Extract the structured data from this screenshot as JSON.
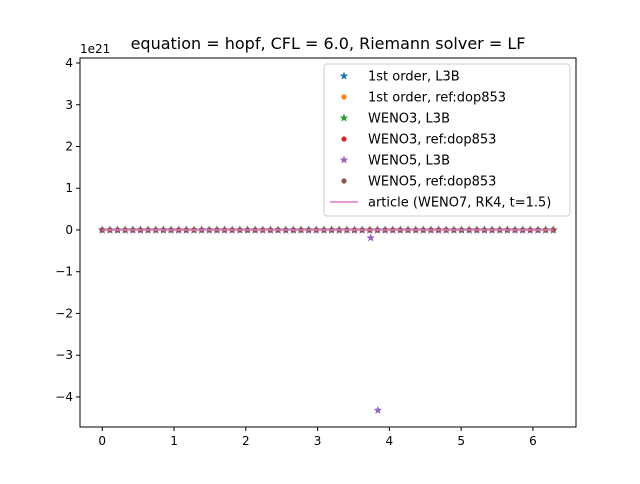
{
  "chart_data": {
    "type": "scatter",
    "title": "equation = hopf, CFL = 6.0, Riemann solver = LF",
    "xlabel": "",
    "ylabel": "",
    "xlim": [
      -0.31,
      6.6
    ],
    "ylim": [
      -4.72,
      4.12
    ],
    "y_offset_label": "1e21",
    "x_ticks": [
      0,
      1,
      2,
      3,
      4,
      5,
      6
    ],
    "y_ticks": [
      -4,
      -3,
      -2,
      -1,
      0,
      1,
      2,
      3,
      4
    ],
    "legend_position": "top-right",
    "flat_x_range": [
      0,
      6.2832
    ],
    "flat_samples": 60,
    "series": [
      {
        "name": "1st order, L3B",
        "color": "#1f77b4",
        "marker": "star",
        "outliers": []
      },
      {
        "name": "1st order, ref:dop853",
        "color": "#ff7f0e",
        "marker": "dot",
        "outliers": []
      },
      {
        "name": "WENO3, L3B",
        "color": "#2ca02c",
        "marker": "star",
        "outliers": []
      },
      {
        "name": "WENO3, ref:dop853",
        "color": "#d62728",
        "marker": "dot",
        "outliers": []
      },
      {
        "name": "WENO5, L3B",
        "color": "#9467bd",
        "marker": "star",
        "outliers": [
          {
            "x": 3.74,
            "y": -0.19
          },
          {
            "x": 3.84,
            "y": -4.32
          }
        ]
      },
      {
        "name": "WENO5, ref:dop853",
        "color": "#8c564b",
        "marker": "dot",
        "outliers": []
      },
      {
        "name": "article (WENO7, RK4, t=1.5)",
        "color": "#e377c2",
        "marker": "line",
        "outliers": []
      }
    ]
  }
}
